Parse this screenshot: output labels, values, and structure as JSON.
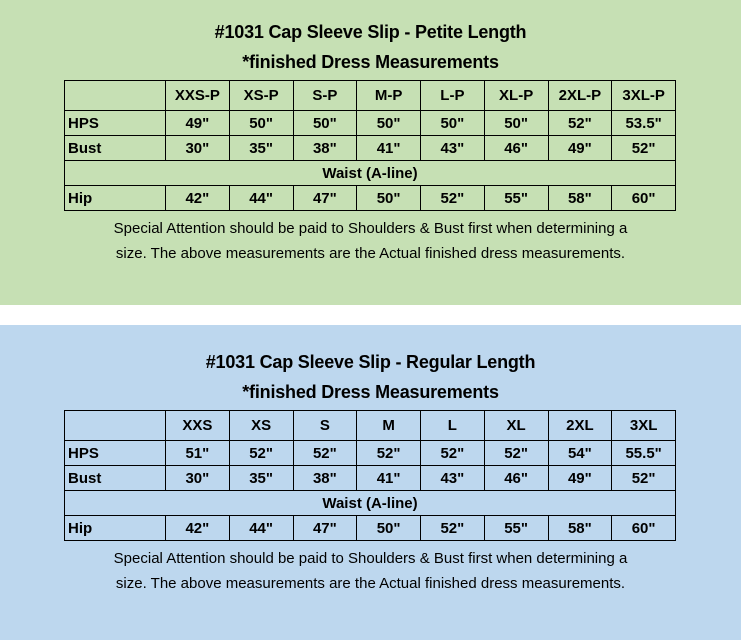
{
  "colors": {
    "petite_bg": "#c6e0b4",
    "regular_bg": "#bdd7ee"
  },
  "charts": [
    {
      "title": "#1031 Cap Sleeve Slip - Petite Length",
      "subtitle": "*finished Dress Measurements",
      "sizes": [
        "XXS-P",
        "XS-P",
        "S-P",
        "M-P",
        "L-P",
        "XL-P",
        "2XL-P",
        "3XL-P"
      ],
      "rows": [
        {
          "label": "HPS",
          "values": [
            "49\"",
            "50\"",
            "50\"",
            "50\"",
            "50\"",
            "50\"",
            "52\"",
            "53.5\""
          ]
        },
        {
          "label": "Bust",
          "values": [
            "30\"",
            "35\"",
            "38\"",
            "41\"",
            "43\"",
            "46\"",
            "49\"",
            "52\""
          ]
        }
      ],
      "waist_label": "Waist (A-line)",
      "hip": {
        "label": "Hip",
        "values": [
          "42\"",
          "44\"",
          "47\"",
          "50\"",
          "52\"",
          "55\"",
          "58\"",
          "60\""
        ]
      },
      "note_line1": "Special Attention should be paid to Shoulders & Bust first when determining a",
      "note_line2": "size. The above measurements are the Actual finished dress measurements."
    },
    {
      "title": "#1031 Cap Sleeve Slip - Regular Length",
      "subtitle": "*finished Dress Measurements",
      "sizes": [
        "XXS",
        "XS",
        "S",
        "M",
        "L",
        "XL",
        "2XL",
        "3XL"
      ],
      "rows": [
        {
          "label": "HPS",
          "values": [
            "51\"",
            "52\"",
            "52\"",
            "52\"",
            "52\"",
            "52\"",
            "54\"",
            "55.5\""
          ]
        },
        {
          "label": "Bust",
          "values": [
            "30\"",
            "35\"",
            "38\"",
            "41\"",
            "43\"",
            "46\"",
            "49\"",
            "52\""
          ]
        }
      ],
      "waist_label": "Waist (A-line)",
      "hip": {
        "label": "Hip",
        "values": [
          "42\"",
          "44\"",
          "47\"",
          "50\"",
          "52\"",
          "55\"",
          "58\"",
          "60\""
        ]
      },
      "note_line1": "Special Attention should be paid to Shoulders & Bust first when determining a",
      "note_line2": "size. The above measurements are the Actual finished dress measurements."
    }
  ]
}
